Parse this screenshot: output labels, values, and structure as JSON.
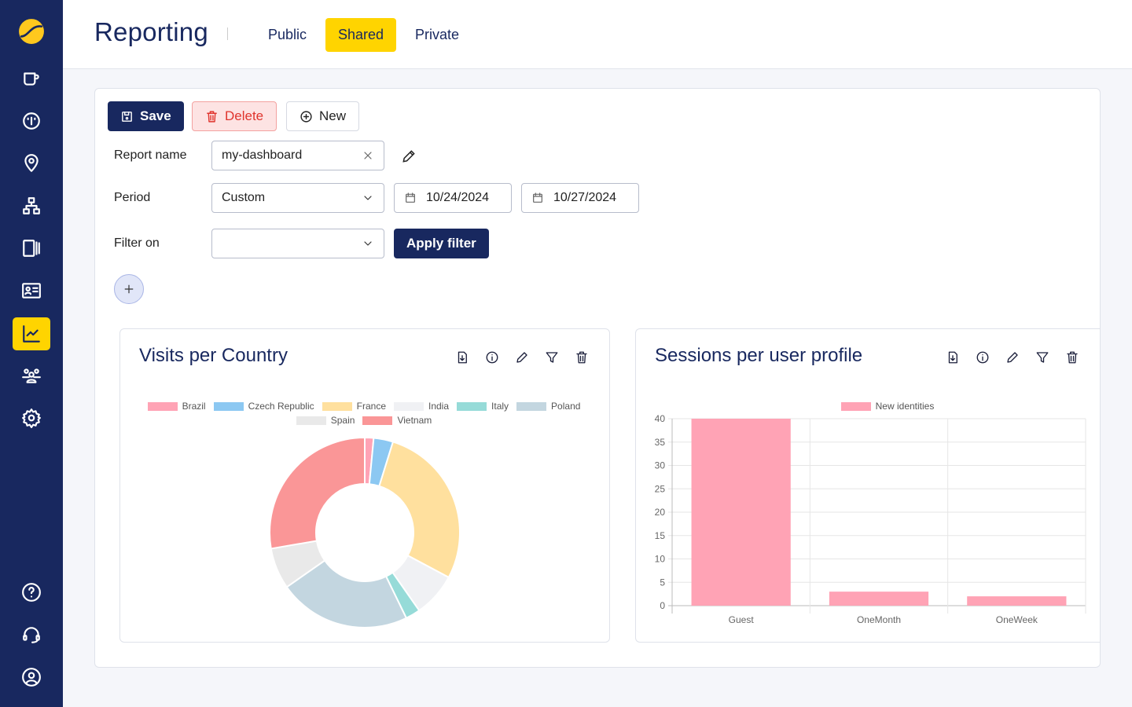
{
  "sidebar": {
    "items": [
      {
        "icon": "logo-icon"
      },
      {
        "icon": "cup-icon"
      },
      {
        "icon": "dashboard-icon"
      },
      {
        "icon": "location-icon"
      },
      {
        "icon": "network-icon"
      },
      {
        "icon": "devices-icon"
      },
      {
        "icon": "id-card-icon"
      },
      {
        "icon": "chart-icon",
        "active": true
      },
      {
        "icon": "users-icon"
      },
      {
        "icon": "settings-icon"
      },
      {
        "icon": "help-icon"
      },
      {
        "icon": "support-icon"
      },
      {
        "icon": "account-icon"
      }
    ]
  },
  "header": {
    "title": "Reporting",
    "tabs": [
      {
        "label": "Public"
      },
      {
        "label": "Shared",
        "active": true
      },
      {
        "label": "Private"
      }
    ]
  },
  "toolbar": {
    "save": "Save",
    "delete": "Delete",
    "new": "New"
  },
  "form": {
    "report_name_label": "Report name",
    "report_name_value": "my-dashboard",
    "period_label": "Period",
    "period_value": "Custom",
    "start_date": "10/24/2024",
    "end_date": "10/27/2024",
    "filter_label": "Filter on",
    "filter_value": "",
    "apply": "Apply filter"
  },
  "colors": {
    "sidebar": "#18285f",
    "accent": "#ffd400",
    "danger": "#e0342d"
  },
  "chart_data": [
    {
      "type": "pie",
      "title": "Visits per Country",
      "donut": true,
      "unit": "percent (estimated)",
      "categories": [
        "Brazil",
        "Czech Republic",
        "France",
        "India",
        "Italy",
        "Poland",
        "Spain",
        "Vietnam"
      ],
      "values": [
        1.5,
        3.3,
        28,
        7.5,
        2.5,
        22.5,
        7,
        27.7
      ],
      "colors": [
        "#ffa3b5",
        "#8cc8f2",
        "#ffe09e",
        "#f0f1f4",
        "#96dbd8",
        "#c3d6e0",
        "#e9e9e9",
        "#fa9697"
      ],
      "legend": "top"
    },
    {
      "type": "bar",
      "title": "Sessions per user profile",
      "categories": [
        "Guest",
        "OneMonth",
        "OneWeek"
      ],
      "series": [
        {
          "name": "New identities",
          "values": [
            40,
            3,
            2
          ],
          "color": "#ffa3b5"
        }
      ],
      "ylim": [
        0,
        40
      ],
      "yticks": [
        0,
        5,
        10,
        15,
        20,
        25,
        30,
        35,
        40
      ],
      "grid": true,
      "legend": "top"
    }
  ]
}
